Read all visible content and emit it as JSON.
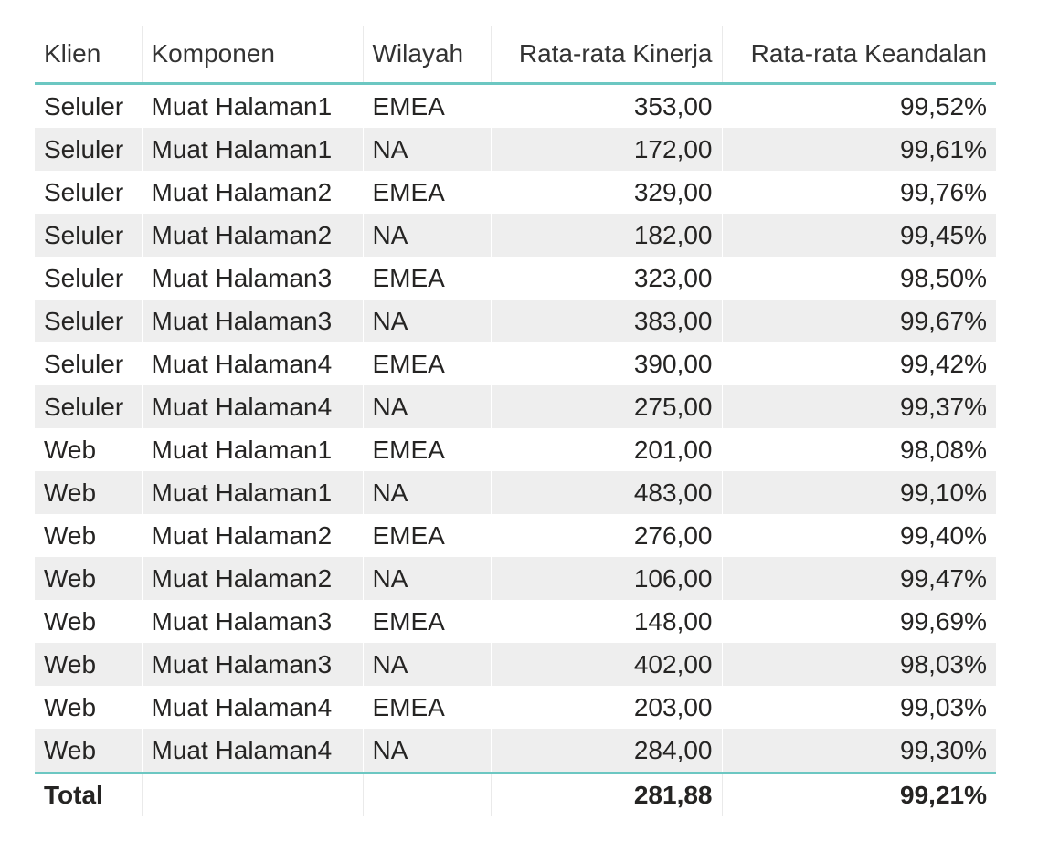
{
  "table": {
    "columns": [
      "Klien",
      "Komponen",
      "Wilayah",
      "Rata-rata Kinerja",
      "Rata-rata Keandalan"
    ],
    "rows": [
      [
        "Seluler",
        "Muat Halaman1",
        "EMEA",
        "353,00",
        "99,52%"
      ],
      [
        "Seluler",
        "Muat Halaman1",
        "NA",
        "172,00",
        "99,61%"
      ],
      [
        "Seluler",
        "Muat Halaman2",
        "EMEA",
        "329,00",
        "99,76%"
      ],
      [
        "Seluler",
        "Muat Halaman2",
        "NA",
        "182,00",
        "99,45%"
      ],
      [
        "Seluler",
        "Muat Halaman3",
        "EMEA",
        "323,00",
        "98,50%"
      ],
      [
        "Seluler",
        "Muat Halaman3",
        "NA",
        "383,00",
        "99,67%"
      ],
      [
        "Seluler",
        "Muat Halaman4",
        "EMEA",
        "390,00",
        "99,42%"
      ],
      [
        "Seluler",
        "Muat Halaman4",
        "NA",
        "275,00",
        "99,37%"
      ],
      [
        "Web",
        "Muat Halaman1",
        "EMEA",
        "201,00",
        "98,08%"
      ],
      [
        "Web",
        "Muat Halaman1",
        "NA",
        "483,00",
        "99,10%"
      ],
      [
        "Web",
        "Muat Halaman2",
        "EMEA",
        "276,00",
        "99,40%"
      ],
      [
        "Web",
        "Muat Halaman2",
        "NA",
        "106,00",
        "99,47%"
      ],
      [
        "Web",
        "Muat Halaman3",
        "EMEA",
        "148,00",
        "99,69%"
      ],
      [
        "Web",
        "Muat Halaman3",
        "NA",
        "402,00",
        "98,03%"
      ],
      [
        "Web",
        "Muat Halaman4",
        "EMEA",
        "203,00",
        "99,03%"
      ],
      [
        "Web",
        "Muat Halaman4",
        "NA",
        "284,00",
        "99,30%"
      ]
    ],
    "total": {
      "label": "Total",
      "performance": "281,88",
      "reliability": "99,21%"
    }
  }
}
